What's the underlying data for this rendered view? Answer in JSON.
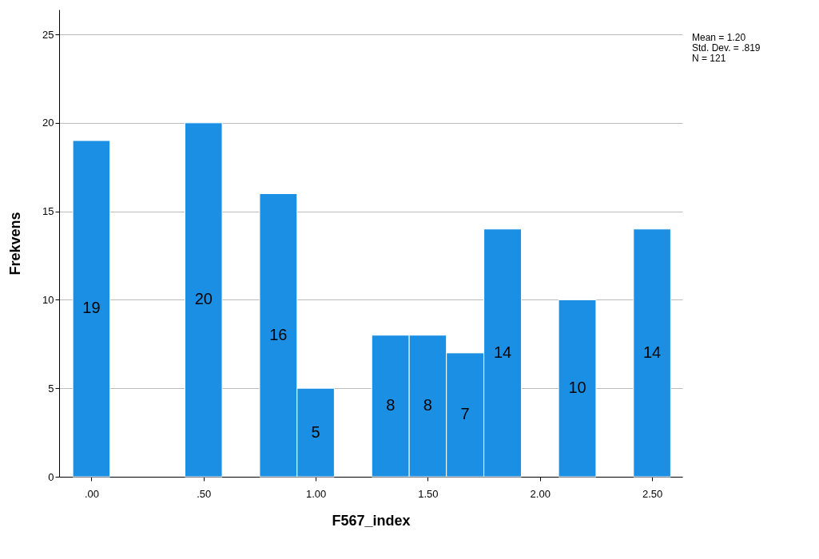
{
  "chart_data": {
    "type": "histogram",
    "xlabel": "F567_index",
    "ylabel": "Frekvens",
    "bins": [
      -0.083,
      0.083,
      0.25,
      0.417,
      0.583,
      0.75,
      0.917,
      1.083,
      1.25,
      1.417,
      1.583,
      1.75,
      1.917,
      2.083,
      2.25,
      2.417,
      2.583
    ],
    "values": [
      19,
      0,
      0,
      20,
      0,
      16,
      5,
      0,
      8,
      8,
      7,
      14,
      0,
      10,
      0,
      14
    ],
    "value_labels": [
      "19",
      null,
      null,
      "20",
      null,
      "16",
      "5",
      null,
      "8",
      "8",
      "7",
      "14",
      null,
      "10",
      null,
      "14"
    ],
    "color": "#1a8fe3",
    "xlim": [
      -0.144,
      2.635
    ],
    "xticks": [
      {
        "value": 0,
        "label": ".00"
      },
      {
        "value": 0.5,
        "label": ".50"
      },
      {
        "value": 1,
        "label": "1.00"
      },
      {
        "value": 1.5,
        "label": "1.50"
      },
      {
        "value": 2,
        "label": "2.00"
      },
      {
        "value": 2.5,
        "label": "2.50"
      }
    ],
    "ylim": [
      0,
      26.4
    ],
    "yticks": [
      0,
      5,
      10,
      15,
      20,
      25
    ],
    "grid": "y",
    "annotations": [
      "Mean = 1.20",
      "Std. Dev. = .819",
      "N = 121"
    ]
  }
}
